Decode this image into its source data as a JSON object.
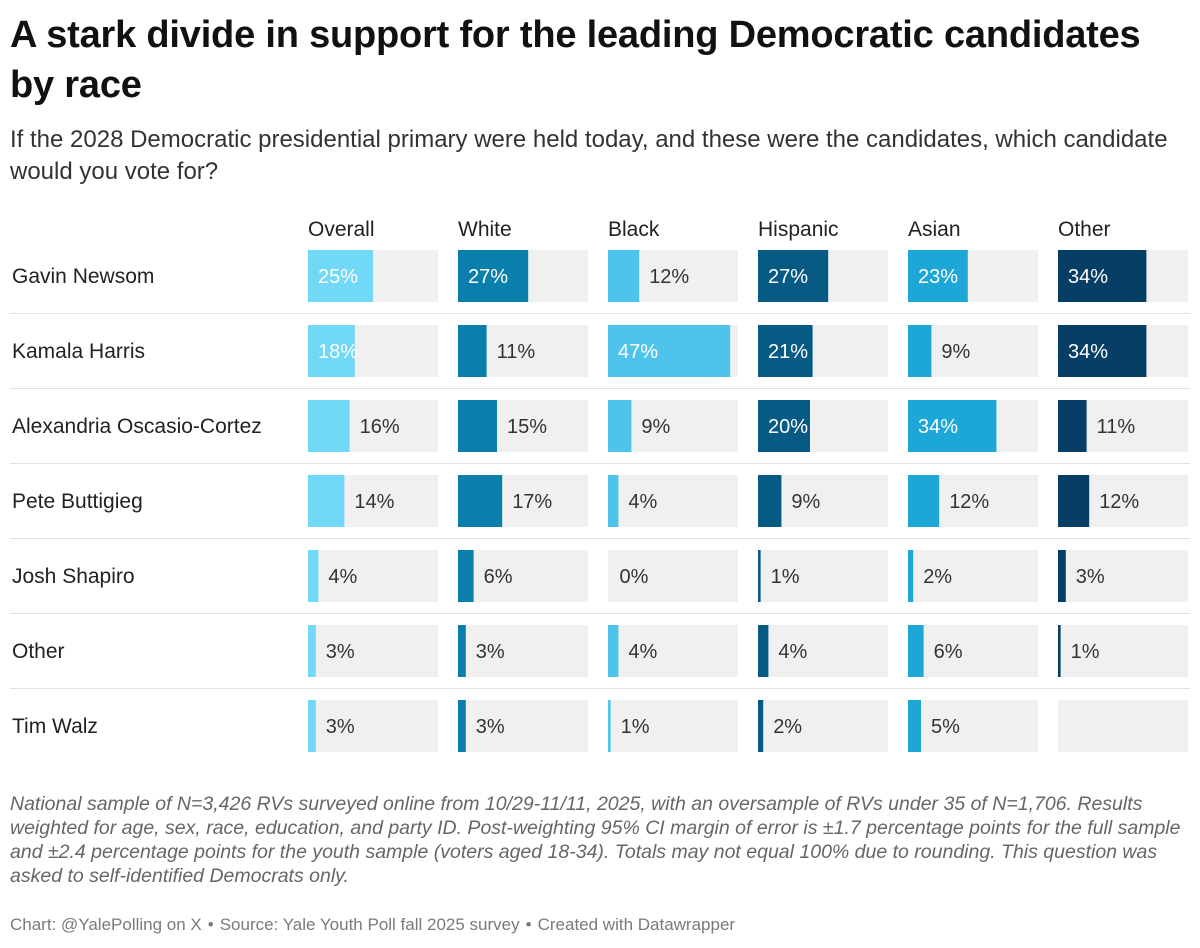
{
  "title": "A stark divide in support for the leading Democratic candidates by race",
  "subtitle": "If the 2028 Democratic presidential primary were held today, and these were the candidates, which candidate would you vote for?",
  "notes": "National sample of N=3,426 RVs surveyed online from 10/29-11/11, 2025, with an oversample of RVs under 35 of N=1,706. Results weighted for age, sex, race, education, and party ID. Post-weighting 95% CI margin of error is ±1.7 percentage points for the full sample and ±2.4 percentage points for the youth sample (voters aged 18-34). Totals may not equal 100% due to rounding. This question was asked to self-identified Democrats only.",
  "credit": {
    "chart": "Chart: @YalePolling on X",
    "source": "Source: Yale Youth Poll fall 2025 survey",
    "tool": "Created with Datawrapper",
    "separator": "•"
  },
  "chart_data": {
    "type": "bar",
    "orientation": "horizontal",
    "layout": "small-multiples",
    "value_suffix": "%",
    "xlim": [
      0,
      50
    ],
    "categories": [
      "Gavin Newsom",
      "Kamala Harris",
      "Alexandria Oscasio-Cortez",
      "Pete Buttigieg",
      "Josh Shapiro",
      "Other",
      "Tim Walz"
    ],
    "series": [
      {
        "name": "Overall",
        "color": "#72d8f7",
        "values": [
          25,
          18,
          16,
          14,
          4,
          3,
          3
        ]
      },
      {
        "name": "White",
        "color": "#0b7fab",
        "values": [
          27,
          11,
          15,
          17,
          6,
          3,
          3
        ]
      },
      {
        "name": "Black",
        "color": "#4ec4ec",
        "values": [
          12,
          47,
          9,
          4,
          0,
          4,
          1
        ]
      },
      {
        "name": "Hispanic",
        "color": "#075a84",
        "values": [
          27,
          21,
          20,
          9,
          1,
          4,
          2
        ]
      },
      {
        "name": "Asian",
        "color": "#1da7d6",
        "values": [
          23,
          9,
          34,
          12,
          2,
          6,
          5
        ]
      },
      {
        "name": "Other",
        "color": "#073e65",
        "values": [
          34,
          34,
          11,
          12,
          3,
          1,
          null
        ]
      }
    ],
    "track_color": "#f0f0f0",
    "label_inside_color": "#ffffff",
    "label_outside_color": "#333333",
    "grid": false,
    "legend": "none"
  }
}
